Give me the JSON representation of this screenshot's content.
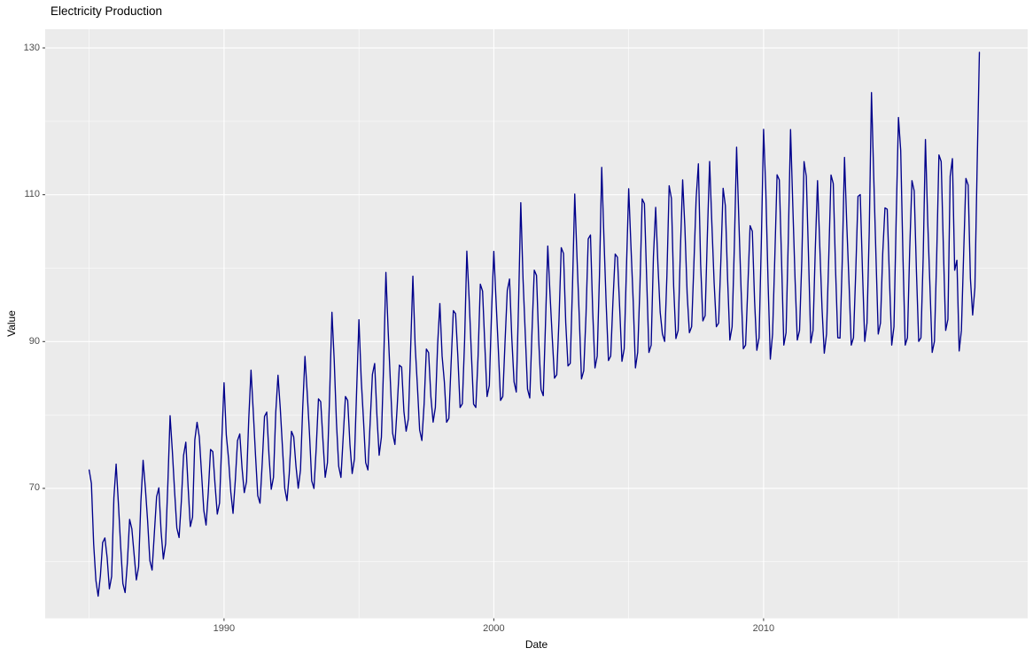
{
  "page": {
    "background": "#FFFFFF"
  },
  "chart_data": {
    "type": "line",
    "title": "Electricity Production",
    "xlabel": "Date",
    "ylabel": "Value",
    "legend": "none",
    "grid": "on",
    "x_axis": {
      "ticks_major": [
        1990,
        2000,
        2010
      ],
      "ticks_minor": [
        1985,
        1995,
        2005,
        2015
      ],
      "range": [
        1983.37,
        2019.79
      ]
    },
    "y_axis": {
      "ticks_major": [
        70,
        90,
        110,
        130
      ],
      "ticks_minor": [
        60,
        80,
        100,
        120
      ],
      "range": [
        52.3,
        132.54
      ]
    },
    "colors": {
      "line": "#00008B",
      "panel_bg": "#EBEBEB",
      "grid": "#FFFFFF",
      "tick_label": "#4D4D4D",
      "tick_mark": "#333333",
      "text": "#000000"
    },
    "series": [
      {
        "name": "Value",
        "frequency": "monthly",
        "start_year": 1985,
        "start_month": 1,
        "end": "2018-01",
        "values": [
          72.51,
          70.67,
          62.45,
          57.47,
          55.32,
          58.09,
          62.62,
          63.25,
          60.58,
          56.32,
          58.0,
          68.71,
          73.31,
          67.99,
          62.22,
          57.03,
          55.81,
          59.9,
          65.77,
          64.48,
          61.0,
          57.53,
          59.34,
          68.14,
          73.82,
          70.06,
          65.61,
          60.16,
          58.87,
          63.89,
          68.87,
          70.07,
          64.12,
          60.38,
          62.46,
          70.58,
          79.9,
          75.11,
          69.64,
          64.6,
          63.3,
          68.21,
          74.5,
          76.3,
          70.3,
          64.8,
          66.1,
          76.6,
          79.0,
          77.0,
          72.0,
          67.0,
          65.0,
          69.5,
          75.3,
          75.0,
          70.5,
          66.5,
          68.0,
          76.5,
          84.39,
          77.31,
          74.05,
          69.52,
          66.6,
          71.04,
          76.51,
          77.42,
          72.79,
          69.42,
          70.92,
          79.51,
          86.1,
          80.48,
          74.52,
          69.02,
          67.98,
          73.52,
          79.81,
          80.39,
          74.49,
          69.88,
          71.52,
          80.32,
          85.41,
          80.99,
          75.53,
          70.01,
          68.32,
          71.98,
          77.78,
          77.01,
          73.02,
          70.02,
          72.48,
          81.02,
          87.98,
          83.01,
          77.51,
          71.02,
          69.99,
          75.48,
          82.19,
          81.81,
          76.52,
          71.51,
          73.49,
          82.98,
          93.99,
          87.52,
          79.01,
          73.01,
          71.49,
          76.98,
          82.52,
          81.98,
          76.01,
          72.02,
          74.01,
          83.52,
          92.97,
          85.02,
          79.49,
          73.52,
          72.51,
          79.01,
          85.52,
          87.01,
          79.98,
          74.51,
          76.98,
          87.02,
          99.41,
          91.52,
          84.49,
          77.51,
          75.98,
          81.02,
          86.78,
          86.52,
          80.51,
          77.79,
          79.48,
          89.02,
          98.91,
          89.52,
          84.01,
          77.98,
          76.52,
          81.51,
          88.98,
          88.49,
          82.52,
          79.02,
          81.02,
          89.51,
          95.18,
          88.02,
          84.52,
          79.01,
          79.52,
          87.01,
          94.21,
          93.79,
          87.98,
          81.02,
          81.52,
          90.02,
          102.31,
          95.98,
          88.52,
          81.48,
          81.02,
          88.01,
          97.81,
          96.88,
          89.52,
          82.51,
          84.02,
          94.01,
          102.28,
          95.52,
          89.01,
          81.98,
          82.52,
          90.01,
          96.98,
          98.52,
          90.48,
          84.52,
          83.12,
          95.02,
          108.91,
          98.52,
          91.02,
          83.52,
          82.31,
          91.48,
          99.72,
          99.01,
          90.02,
          83.48,
          82.62,
          92.52,
          103.01,
          96.48,
          90.52,
          85.02,
          85.48,
          93.02,
          102.79,
          102.01,
          92.52,
          86.68,
          87.02,
          97.52,
          110.09,
          101.52,
          93.48,
          84.91,
          86.02,
          93.52,
          103.98,
          104.52,
          94.02,
          86.41,
          88.02,
          99.01,
          113.72,
          104.01,
          95.02,
          87.41,
          88.02,
          95.52,
          101.92,
          101.48,
          94.52,
          87.31,
          89.01,
          100.02,
          110.81,
          103.02,
          95.52,
          86.41,
          88.52,
          97.52,
          109.42,
          108.78,
          98.52,
          88.52,
          89.52,
          101.52,
          108.28,
          100.52,
          94.02,
          91.02,
          90.02,
          99.02,
          111.22,
          109.51,
          97.52,
          90.41,
          91.52,
          102.52,
          112.02,
          105.51,
          96.52,
          91.21,
          92.02,
          100.52,
          109.52,
          114.21,
          100.52,
          92.81,
          93.52,
          104.52,
          114.52,
          106.02,
          98.02,
          92.02,
          92.52,
          101.02,
          110.88,
          108.52,
          98.52,
          90.21,
          92.02,
          103.02,
          116.48,
          106.52,
          97.02,
          89.02,
          89.52,
          97.52,
          105.78,
          105.02,
          95.52,
          88.81,
          90.52,
          103.52,
          118.91,
          110.52,
          98.02,
          87.61,
          91.02,
          101.52,
          112.72,
          112.02,
          101.02,
          89.52,
          91.21,
          104.02,
          118.88,
          108.52,
          98.52,
          90.21,
          91.52,
          101.02,
          114.51,
          112.52,
          101.52,
          89.81,
          91.52,
          102.52,
          111.92,
          103.02,
          94.52,
          88.41,
          91.02,
          101.52,
          112.68,
          111.52,
          100.02,
          90.52,
          90.48,
          101.02,
          115.08,
          106.02,
          98.02,
          89.52,
          90.52,
          99.52,
          109.78,
          110.02,
          99.52,
          90.02,
          92.52,
          105.02,
          123.91,
          112.52,
          101.52,
          91.02,
          92.52,
          102.02,
          108.21,
          108.02,
          98.52,
          89.52,
          92.02,
          107.02,
          120.52,
          116.02,
          101.52,
          89.52,
          90.52,
          102.52,
          111.92,
          110.52,
          99.52,
          90.02,
          90.52,
          101.52,
          117.52,
          106.52,
          97.52,
          88.52,
          90.02,
          101.52,
          115.42,
          114.52,
          102.52,
          91.52,
          93.02,
          112.52,
          114.92,
          99.72,
          101.08,
          88.72,
          91.52,
          102.02,
          112.22,
          111.32,
          98.62,
          93.62,
          97.32,
          114.02,
          129.4
        ]
      }
    ]
  }
}
